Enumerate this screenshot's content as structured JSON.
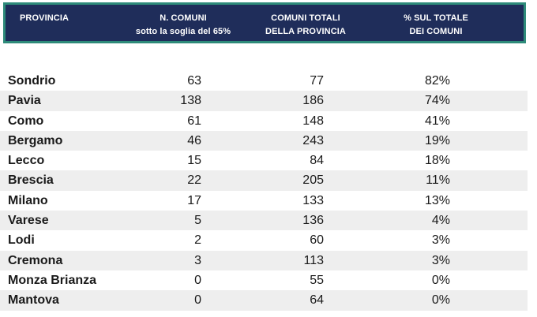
{
  "chart_data": {
    "type": "table",
    "columns": [
      "PROVINCIA",
      "N. COMUNI sotto la soglia del 65%",
      "COMUNI TOTALI DELLA PROVINCIA",
      "% SUL TOTALE DEI COMUNI"
    ],
    "header": {
      "provincia": "PROVINCIA",
      "n_comuni": [
        "N. COMUNI",
        "sotto la soglia del 65%"
      ],
      "totali": [
        "COMUNI TOTALI",
        "DELLA PROVINCIA"
      ],
      "percentuale": [
        "% SUL TOTALE",
        "DEI COMUNI"
      ]
    },
    "rows": [
      {
        "provincia": "Sondrio",
        "n_comuni": "63",
        "totali": "77",
        "percentuale": "82%"
      },
      {
        "provincia": "Pavia",
        "n_comuni": "138",
        "totali": "186",
        "percentuale": "74%"
      },
      {
        "provincia": "Como",
        "n_comuni": "61",
        "totali": "148",
        "percentuale": "41%"
      },
      {
        "provincia": "Bergamo",
        "n_comuni": "46",
        "totali": "243",
        "percentuale": "19%"
      },
      {
        "provincia": "Lecco",
        "n_comuni": "15",
        "totali": "84",
        "percentuale": "18%"
      },
      {
        "provincia": "Brescia",
        "n_comuni": "22",
        "totali": "205",
        "percentuale": "11%"
      },
      {
        "provincia": "Milano",
        "n_comuni": "17",
        "totali": "133",
        "percentuale": "13%"
      },
      {
        "provincia": "Varese",
        "n_comuni": "5",
        "totali": "136",
        "percentuale": "4%"
      },
      {
        "provincia": "Lodi",
        "n_comuni": "2",
        "totali": "60",
        "percentuale": "3%"
      },
      {
        "provincia": "Cremona",
        "n_comuni": "3",
        "totali": "113",
        "percentuale": "3%"
      },
      {
        "provincia": "Monza Brianza",
        "n_comuni": "0",
        "totali": "55",
        "percentuale": "0%"
      },
      {
        "provincia": "Mantova",
        "n_comuni": "0",
        "totali": "64",
        "percentuale": "0%"
      }
    ]
  },
  "colors": {
    "header_bg": "#1f2d5a",
    "header_border": "#2e8b7a",
    "header_text": "#ffffff",
    "row_stripe": "#eeeeee"
  }
}
